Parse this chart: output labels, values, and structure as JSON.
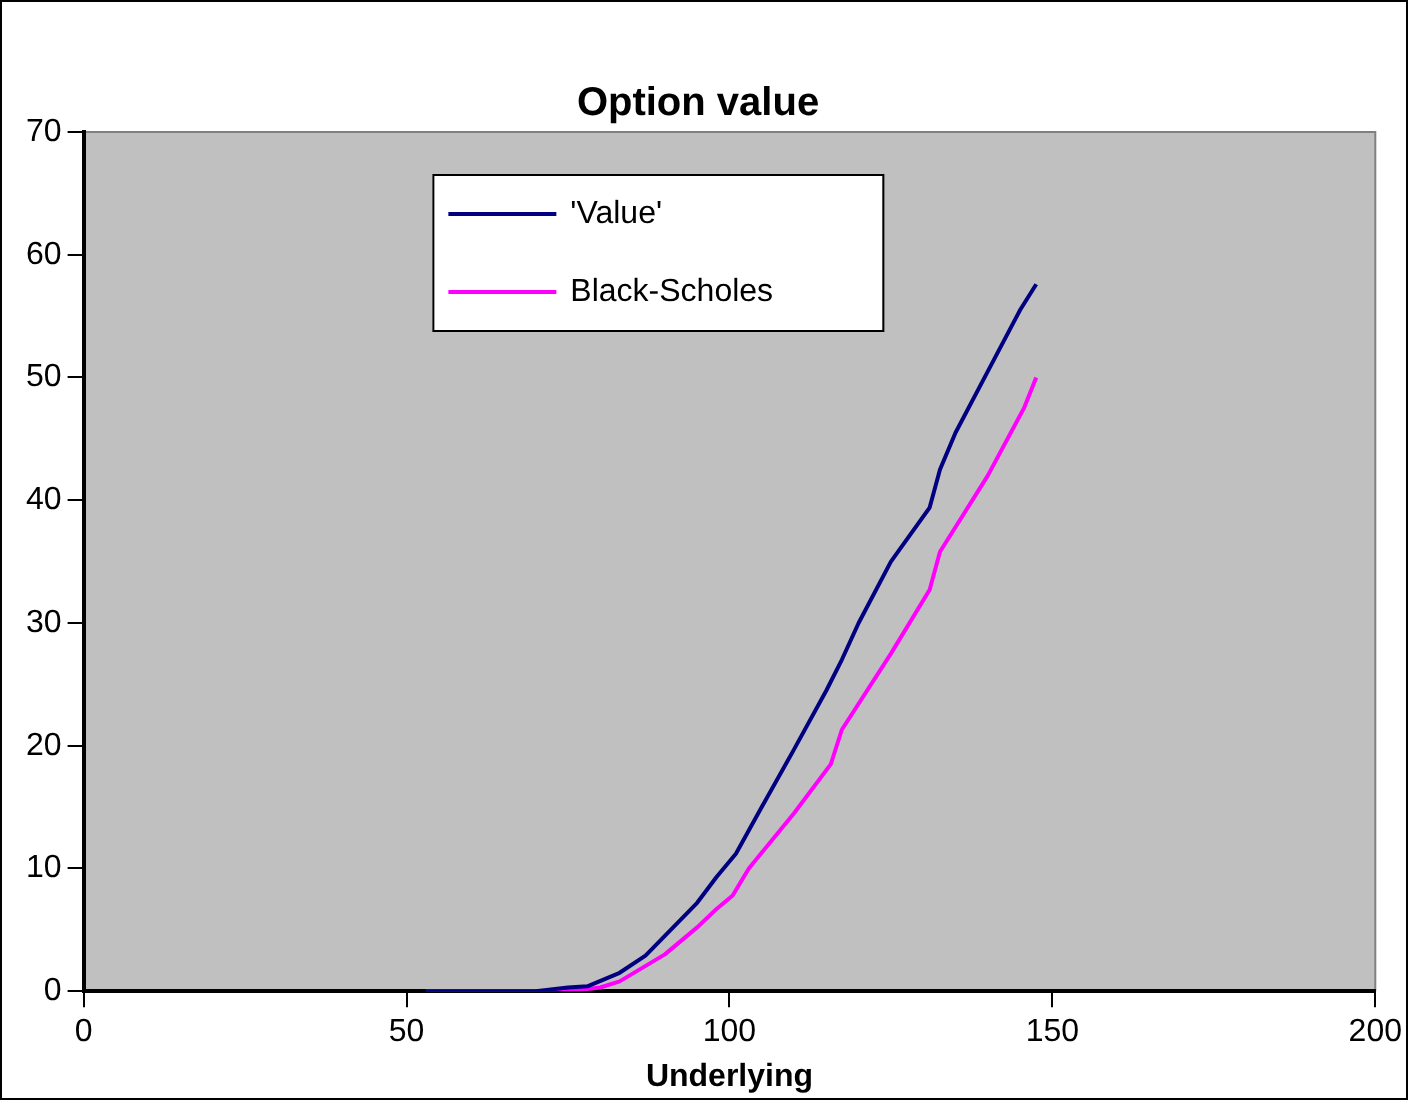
{
  "chart_data": {
    "type": "line",
    "title": "Option value",
    "xlabel": "Underlying",
    "xlim": [
      0,
      200
    ],
    "xticks": [
      0,
      50,
      100,
      150,
      200
    ],
    "ylim": [
      0,
      70
    ],
    "yticks": [
      0,
      10,
      20,
      30,
      40,
      50,
      60,
      70
    ],
    "grid": false,
    "legend": "top",
    "marker": "none",
    "line_style": "solid",
    "series": [
      {
        "name": "'Value'",
        "color": "#000080",
        "x": [
          53,
          60,
          70,
          75,
          78,
          83,
          87,
          90,
          95,
          98,
          101,
          105,
          110,
          115,
          117.4,
          120,
          125,
          131,
          132.6,
          135,
          140,
          145,
          147.5
        ],
        "values": [
          0,
          0,
          0,
          0.3,
          0.4,
          1.5,
          2.9,
          4.5,
          7.2,
          9.3,
          11.2,
          15,
          19.7,
          24.5,
          27,
          30,
          35,
          39.4,
          42.5,
          45.5,
          50.5,
          55.5,
          57.6
        ]
      },
      {
        "name": "Black-Scholes",
        "color": "#ff00ff",
        "x": [
          53,
          70,
          75,
          80,
          83,
          90,
          95,
          98,
          100.5,
          103,
          110,
          115.7,
          117.4,
          125,
          131,
          132.6,
          140,
          145.6,
          147.5
        ],
        "values": [
          0,
          0,
          0,
          0.3,
          0.8,
          3,
          5.2,
          6.7,
          7.8,
          10,
          14.5,
          18.5,
          21.3,
          27.5,
          32.7,
          35.8,
          42,
          47.5,
          50
        ]
      }
    ]
  }
}
